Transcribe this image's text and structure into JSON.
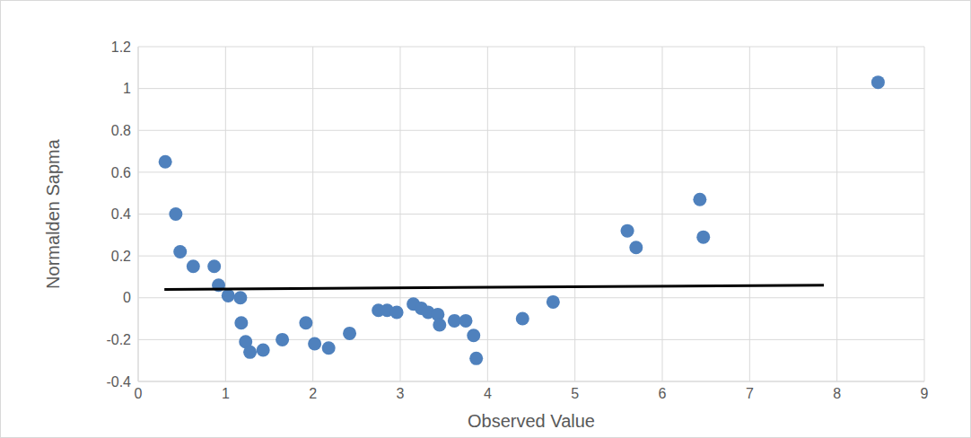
{
  "chart_data": {
    "type": "scatter",
    "x_label": "Observed Value",
    "y_label": "Normalden Sapma",
    "xlim": [
      0,
      9
    ],
    "xticks": [
      0,
      1,
      2,
      3,
      4,
      5,
      6,
      7,
      8,
      9
    ],
    "ylim": [
      -0.4,
      1.2
    ],
    "yticks": [
      -0.4,
      -0.2,
      0,
      0.2,
      0.4,
      0.6,
      0.8,
      1,
      1.2
    ],
    "grid": true,
    "series": [
      {
        "type": "scatter",
        "color": "#4f81bd",
        "marker": "circle",
        "x": [
          0.31,
          0.43,
          0.48,
          0.63,
          0.87,
          0.92,
          1.03,
          1.17,
          1.18,
          1.23,
          1.28,
          1.43,
          1.65,
          1.92,
          2.02,
          2.18,
          2.42,
          2.75,
          2.85,
          2.96,
          3.15,
          3.24,
          3.32,
          3.43,
          3.45,
          3.62,
          3.75,
          3.84,
          3.87,
          4.4,
          4.75,
          5.6,
          5.7,
          6.43,
          6.47,
          8.47
        ],
        "values": [
          0.65,
          0.4,
          0.22,
          0.15,
          0.15,
          0.06,
          0.01,
          0.0,
          -0.12,
          -0.21,
          -0.26,
          -0.25,
          -0.2,
          -0.12,
          -0.22,
          -0.24,
          -0.17,
          -0.06,
          -0.06,
          -0.07,
          -0.03,
          -0.05,
          -0.07,
          -0.08,
          -0.13,
          -0.11,
          -0.11,
          -0.18,
          -0.29,
          -0.1,
          -0.02,
          0.32,
          0.24,
          0.47,
          0.29,
          1.03
        ]
      },
      {
        "type": "line",
        "color": "#000000",
        "x": [
          0.3,
          7.85
        ],
        "values": [
          0.04,
          0.06
        ]
      }
    ]
  }
}
